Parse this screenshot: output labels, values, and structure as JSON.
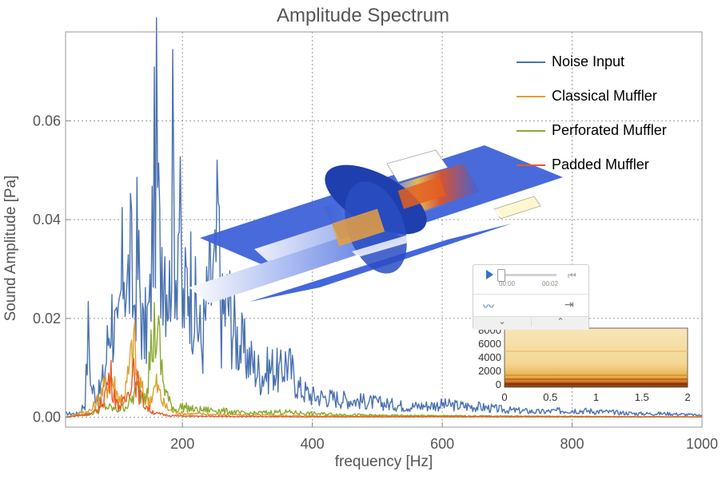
{
  "chart_data": {
    "type": "line",
    "title": "Amplitude Spectrum",
    "xlabel": "frequency [Hz]",
    "ylabel": "Sound Amplitude [Pa]",
    "xlim": [
      20,
      1000
    ],
    "ylim": [
      -0.002,
      0.078
    ],
    "x_ticks": [
      200,
      400,
      600,
      800,
      1000
    ],
    "y_ticks": [
      0.0,
      0.02,
      0.04,
      0.06
    ],
    "y_tick_labels": [
      "0.00",
      "0.02",
      "0.04",
      "0.06"
    ],
    "grid": true,
    "legend_position": "top-right",
    "series": [
      {
        "name": "Noise Input",
        "color": "#4a72b0",
        "x": [
          20,
          40,
          50,
          55,
          60,
          70,
          80,
          90,
          100,
          110,
          115,
          120,
          125,
          130,
          140,
          150,
          155,
          160,
          165,
          170,
          180,
          185,
          190,
          195,
          200,
          210,
          220,
          230,
          240,
          250,
          255,
          260,
          270,
          280,
          290,
          300,
          320,
          340,
          350,
          360,
          380,
          400,
          450,
          500,
          550,
          600,
          650,
          700,
          750,
          800,
          850,
          900,
          950,
          1000
        ],
        "y": [
          0.001,
          0.001,
          0.004,
          0.024,
          0.008,
          0.006,
          0.012,
          0.03,
          0.02,
          0.047,
          0.035,
          0.044,
          0.03,
          0.046,
          0.022,
          0.03,
          0.06,
          0.075,
          0.045,
          0.053,
          0.035,
          0.07,
          0.045,
          0.06,
          0.028,
          0.042,
          0.03,
          0.02,
          0.035,
          0.038,
          0.055,
          0.027,
          0.033,
          0.024,
          0.02,
          0.017,
          0.012,
          0.014,
          0.012,
          0.016,
          0.008,
          0.006,
          0.005,
          0.004,
          0.003,
          0.0035,
          0.003,
          0.002,
          0.0015,
          0.002,
          0.0015,
          0.001,
          0.001,
          0.0005
        ]
      },
      {
        "name": "Classical Muffler",
        "color": "#e0a030",
        "x": [
          20,
          60,
          80,
          90,
          100,
          110,
          120,
          125,
          130,
          140,
          150,
          160,
          170,
          180,
          200,
          250,
          300,
          400,
          600,
          800,
          1000
        ],
        "y": [
          0.0,
          0.002,
          0.008,
          0.012,
          0.006,
          0.005,
          0.015,
          0.022,
          0.012,
          0.006,
          0.005,
          0.009,
          0.004,
          0.002,
          0.001,
          0.0008,
          0.0006,
          0.0004,
          0.0003,
          0.0002,
          0.0001
        ]
      },
      {
        "name": "Perforated Muffler",
        "color": "#8aaa30",
        "x": [
          20,
          60,
          80,
          100,
          120,
          130,
          140,
          150,
          155,
          160,
          165,
          170,
          180,
          190,
          200,
          220,
          250,
          300,
          350,
          400,
          500,
          700,
          1000
        ],
        "y": [
          0.0,
          0.001,
          0.003,
          0.002,
          0.004,
          0.008,
          0.006,
          0.016,
          0.022,
          0.025,
          0.018,
          0.01,
          0.004,
          0.002,
          0.003,
          0.002,
          0.002,
          0.001,
          0.0015,
          0.001,
          0.0005,
          0.0003,
          0.0001
        ]
      },
      {
        "name": "Padded Muffler",
        "color": "#e85a2a",
        "x": [
          20,
          60,
          70,
          80,
          85,
          90,
          95,
          100,
          110,
          115,
          120,
          125,
          130,
          135,
          140,
          150,
          160,
          180,
          200,
          300,
          400,
          600,
          800,
          1000
        ],
        "y": [
          0.0,
          0.001,
          0.002,
          0.006,
          0.01,
          0.011,
          0.007,
          0.003,
          0.004,
          0.006,
          0.012,
          0.015,
          0.01,
          0.006,
          0.004,
          0.002,
          0.001,
          0.0005,
          0.0003,
          0.0002,
          0.0001,
          0.0001,
          0.0001,
          0.0001
        ]
      }
    ],
    "inset_spectrogram": {
      "x_ticks": [
        "0",
        "0.5",
        "1",
        "1.5",
        "2"
      ],
      "y_ticks": [
        "0",
        "2000",
        "4000",
        "6000",
        "8000"
      ]
    }
  },
  "audio_player": {
    "time_start": "00:00",
    "time_end": "00:02"
  }
}
